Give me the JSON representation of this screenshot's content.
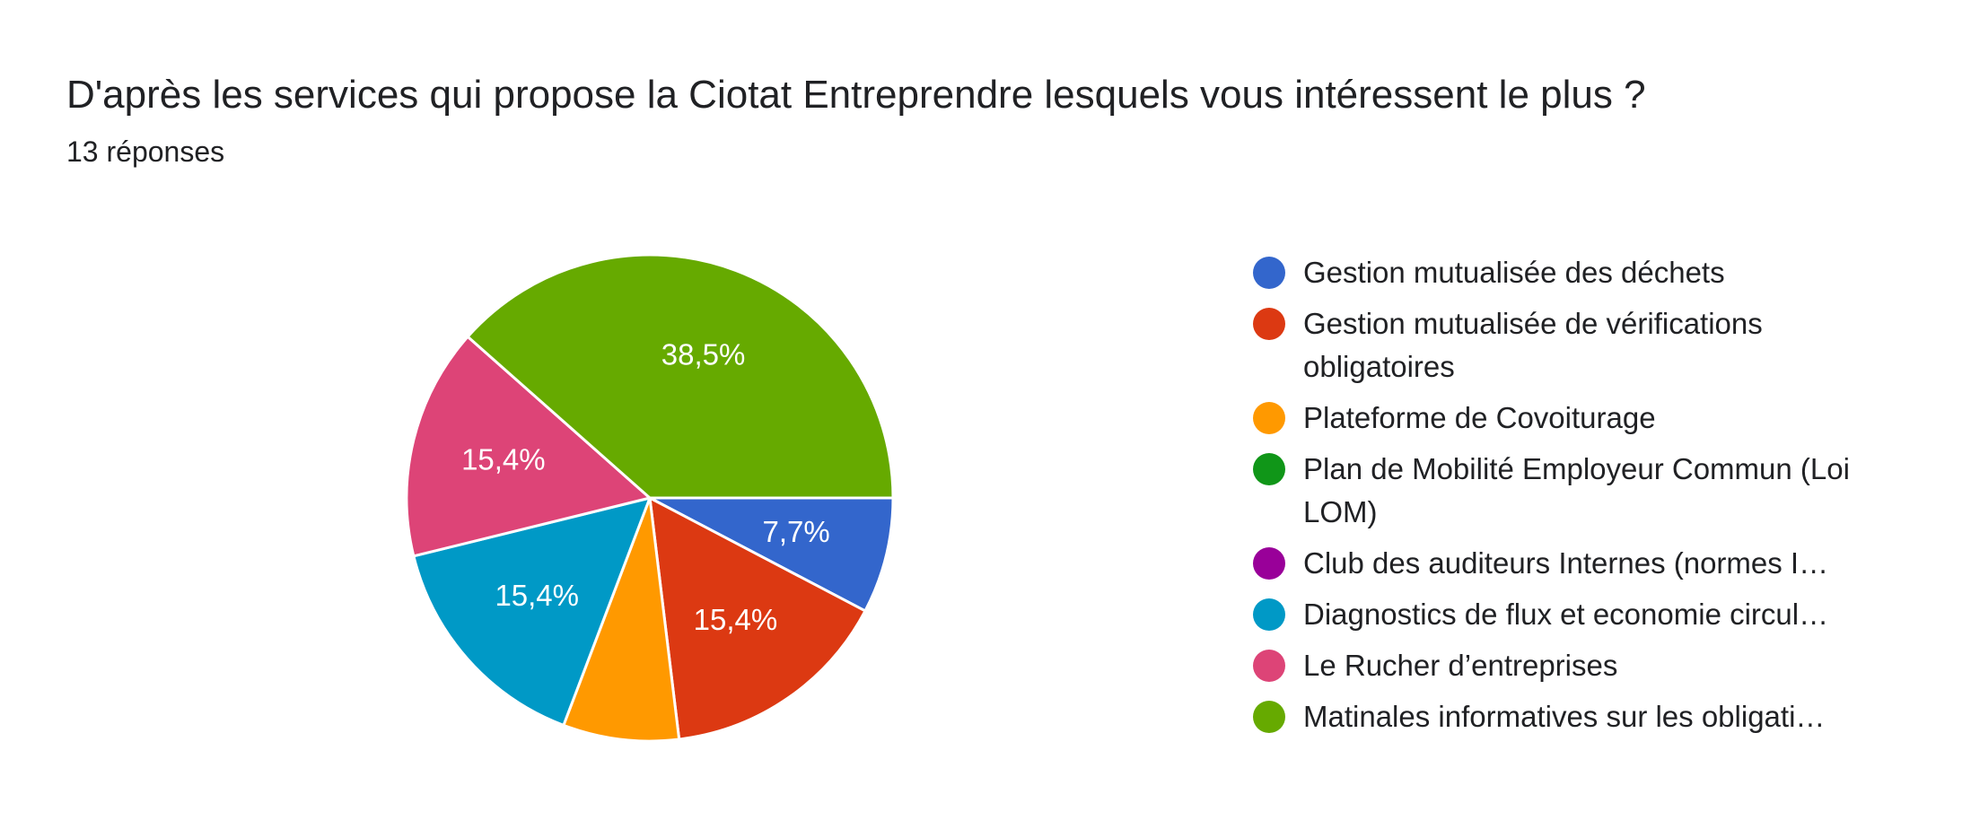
{
  "title": "D'après les services qui propose la Ciotat Entreprendre lesquels vous intéressent le plus ?",
  "subtitle": "13 réponses",
  "chart_data": {
    "type": "pie",
    "total_responses": 13,
    "slices": [
      {
        "label": "Gestion mutualisée des déchets",
        "count": 1,
        "percent_label": "7,7%",
        "color": "#3366cc"
      },
      {
        "label": "Gestion mutualisée de vérifications obligatoires",
        "count": 2,
        "percent_label": "15,4%",
        "color": "#dc3912"
      },
      {
        "label": "Plateforme de Covoiturage",
        "count": 1,
        "percent_label": "",
        "color": "#ff9900"
      },
      {
        "label": "Plan de Mobilité Employeur Commun (Loi LOM)",
        "count": 0,
        "percent_label": "",
        "color": "#109618"
      },
      {
        "label": "Club des auditeurs Internes (normes I…",
        "count": 0,
        "percent_label": "",
        "color": "#990099"
      },
      {
        "label": "Diagnostics de flux et economie circul…",
        "count": 2,
        "percent_label": "15,4%",
        "color": "#0099c6"
      },
      {
        "label": "Le Rucher d’entreprises",
        "count": 2,
        "percent_label": "15,4%",
        "color": "#dd4477"
      },
      {
        "label": "Matinales informatives sur les obligati…",
        "count": 5,
        "percent_label": "38,5%",
        "color": "#66aa00"
      }
    ],
    "legend_position": "right"
  }
}
